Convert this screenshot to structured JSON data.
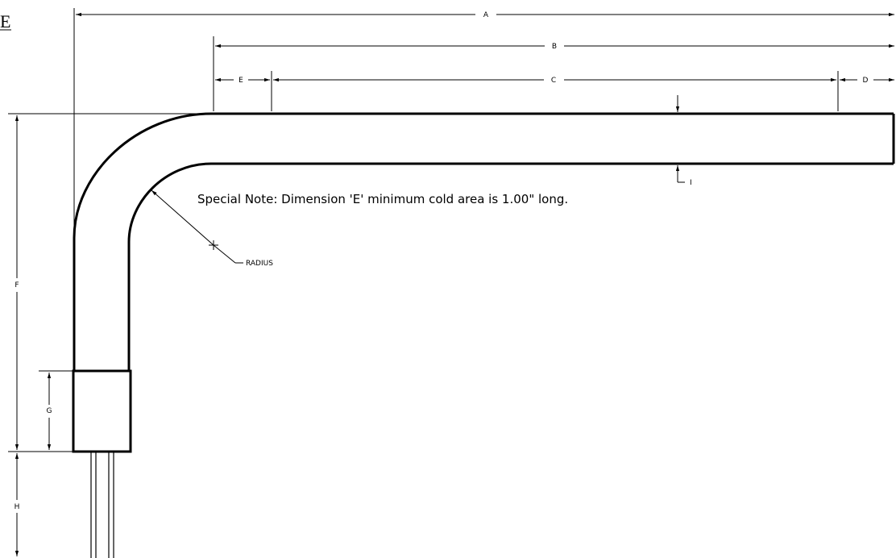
{
  "drawing": {
    "corner_label": "E",
    "special_note": "Special Note: Dimension 'E' minimum cold area is 1.00\" long.",
    "radius_label": "RADIUS",
    "dimensions": {
      "A": "A",
      "B": "B",
      "C": "C",
      "D": "D",
      "E": "E",
      "F": "F",
      "G": "G",
      "H": "H",
      "I": "I"
    }
  }
}
